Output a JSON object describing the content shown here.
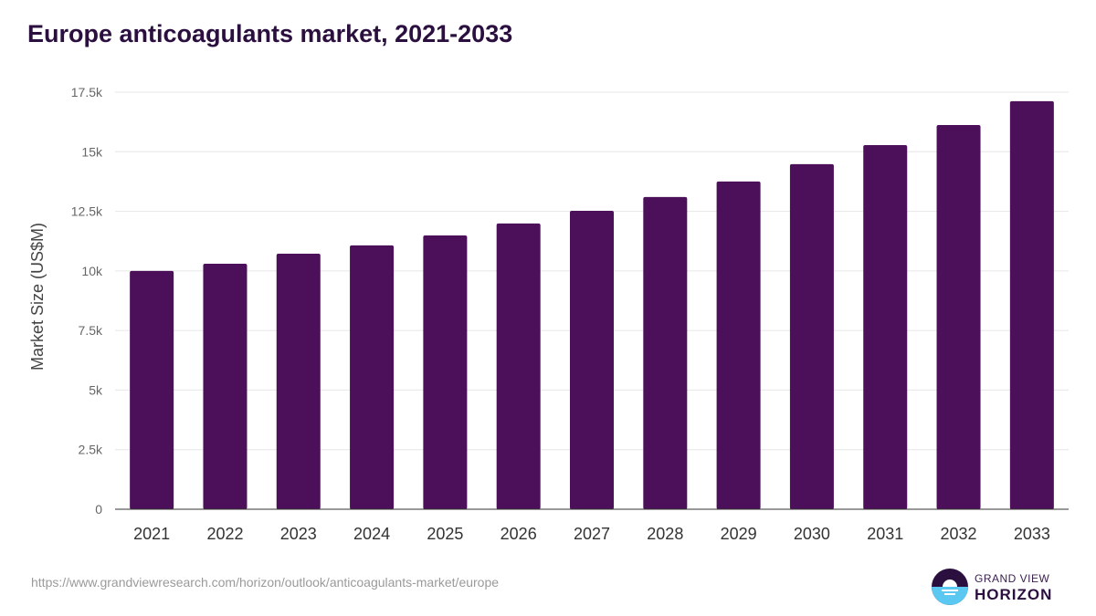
{
  "title": "Europe anticoagulants market, 2021-2033",
  "source": "https://www.grandviewresearch.com/horizon/outlook/anticoagulants-market/europe",
  "logo": {
    "line1": "GRAND VIEW",
    "line2": "HORIZON"
  },
  "colors": {
    "bar": "#4b1059",
    "grid": "#e6e6e6",
    "title": "#2b0f3f"
  },
  "chart_data": {
    "type": "bar",
    "title": "Europe anticoagulants market, 2021-2033",
    "xlabel": "",
    "ylabel": "Market Size (US$M)",
    "ylim": [
      0,
      17500
    ],
    "yticks": [
      0,
      2500,
      5000,
      7500,
      10000,
      12500,
      15000,
      17500
    ],
    "ytick_labels": [
      "0",
      "2.5k",
      "5k",
      "7.5k",
      "10k",
      "12.5k",
      "15k",
      "17.5k"
    ],
    "grid": true,
    "categories": [
      "2021",
      "2022",
      "2023",
      "2024",
      "2025",
      "2026",
      "2027",
      "2028",
      "2029",
      "2030",
      "2031",
      "2032",
      "2033"
    ],
    "values": [
      10000,
      10300,
      10720,
      11070,
      11490,
      11990,
      12520,
      13100,
      13750,
      14480,
      15280,
      16120,
      17120
    ]
  }
}
